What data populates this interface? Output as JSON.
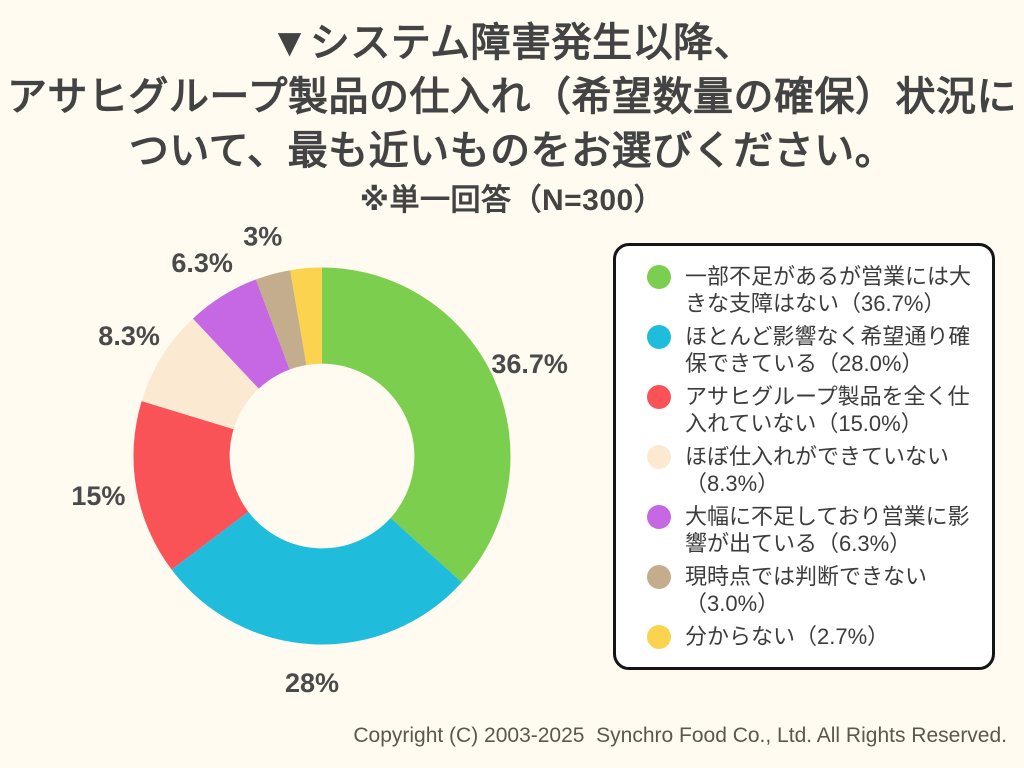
{
  "page": {
    "background_color": "#FFFBF1",
    "title": {
      "line1": "▼システム障害発生以降、",
      "line2": "アサヒグループ製品の仕入れ（希望数量の確保）状況に",
      "line3": "ついて、最も近いものをお選びください。",
      "note": "※単一回答（N=300）"
    },
    "footer": {
      "copyright": "Copyright (C) 2003-2025  Synchro Food Co., Ltd. All Rights Reserved."
    }
  },
  "chart_data": {
    "type": "pie",
    "subtype": "donut",
    "title": "システム障害発生以降のアサヒグループ製品の仕入れ（希望数量の確保）状況",
    "sample_note": "※単一回答（N=300）",
    "n": 300,
    "start_angle_deg": 0,
    "direction": "clockwise",
    "inner_radius_ratio": 0.49,
    "outer_label_radius_ratio": 1.205,
    "legend_position": "right",
    "label_color": "#4A4A4A",
    "slices": [
      {
        "legend_label": "一部不足があるが営業には大きな支障はない（36.7%）",
        "value": 36.7,
        "slice_label": "36.7%",
        "color": "#7CCE4E"
      },
      {
        "legend_label": "ほとんど影響なく希望通り確保できている（28.0%）",
        "value": 28.0,
        "slice_label": "28%",
        "color": "#1FBDDB"
      },
      {
        "legend_label": "アサヒグループ製品を全く仕入れていない（15.0%）",
        "value": 15.0,
        "slice_label": "15%",
        "color": "#F95357"
      },
      {
        "legend_label": "ほぼ仕入れができていない（8.3%）",
        "value": 8.3,
        "slice_label": "8.3%",
        "color": "#FBEAD1"
      },
      {
        "legend_label": "大幅に不足しており営業に影響が出ている（6.3%）",
        "value": 6.3,
        "slice_label": "6.3%",
        "color": "#C668E4"
      },
      {
        "legend_label": "現時点では判断できない（3.0%）",
        "value": 3.0,
        "slice_label": "3%",
        "color": "#C3AD8D"
      },
      {
        "legend_label": "分からない（2.7%）",
        "value": 2.7,
        "slice_label": "",
        "color": "#FBD34E"
      }
    ]
  }
}
